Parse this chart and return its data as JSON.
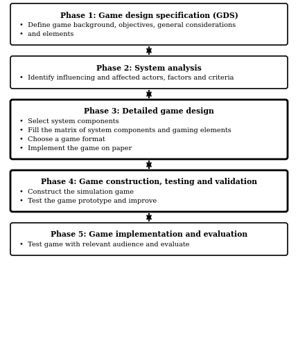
{
  "phases": [
    {
      "title": "Phase 1: Game design specification (GDS)",
      "bullets": [
        "Define game background, objectives, general considerations",
        "and elements"
      ],
      "bold_border": false,
      "line_count": 3
    },
    {
      "title": "Phase 2: System analysis",
      "bullets": [
        "Identify influencing and affected actors, factors and criteria"
      ],
      "bold_border": false,
      "line_count": 2
    },
    {
      "title": "Phase 3: Detailed game design",
      "bullets": [
        "Select system components",
        "Fill the matrix of system components and gaming elements",
        "Choose a game format",
        "Implement the game on paper"
      ],
      "bold_border": true,
      "line_count": 5
    },
    {
      "title": "Phase 4: Game construction, testing and validation",
      "bullets": [
        "Construct the simulation game",
        "Test the game prototype and improve"
      ],
      "bold_border": true,
      "line_count": 3
    },
    {
      "title": "Phase 5: Game implementation and evaluation",
      "bullets": [
        "Test game with relevant audience and evaluate"
      ],
      "bold_border": false,
      "line_count": 2
    }
  ],
  "bg_color": "#ffffff",
  "box_fill": "#ffffff",
  "box_edge_color": "#000000",
  "title_fontsize": 7.8,
  "bullet_fontsize": 7.0,
  "arrow_color": "#000000",
  "fig_width": 4.3,
  "fig_height": 5.0,
  "dpi": 100
}
